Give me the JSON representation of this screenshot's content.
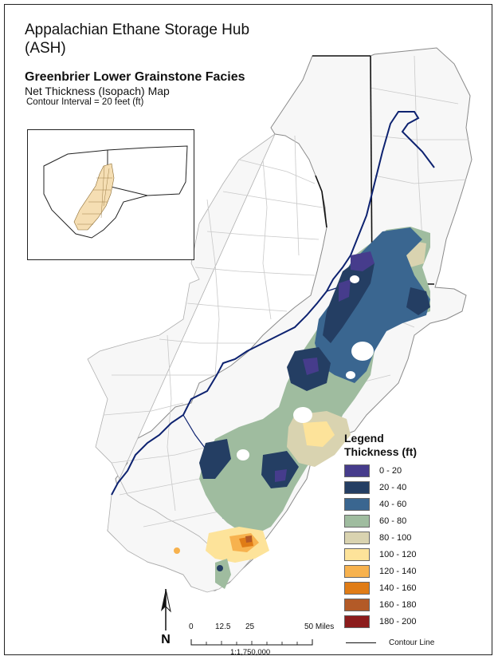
{
  "title": {
    "main": "Appalachian Ethane Storage Hub (ASH)",
    "unit": "Greenbrier Lower Grainstone Facies",
    "map_type": "Net Thickness (Isopach) Map",
    "contour_interval": "Contour Interval = 20 feet (ft)"
  },
  "legend": {
    "title": "Legend",
    "subtitle": "Thickness (ft)",
    "classes": [
      {
        "label": "0 - 20",
        "color": "#463c8c"
      },
      {
        "label": "20 - 40",
        "color": "#243e63"
      },
      {
        "label": "40 - 60",
        "color": "#3a6690"
      },
      {
        "label": "60 - 80",
        "color": "#9fbc9f"
      },
      {
        "label": "80 - 100",
        "color": "#d9d3b0"
      },
      {
        "label": "100 - 120",
        "color": "#fde39a"
      },
      {
        "label": "120 - 140",
        "color": "#f7b24e"
      },
      {
        "label": "140 - 160",
        "color": "#e07c16"
      },
      {
        "label": "160 - 180",
        "color": "#b35a27"
      },
      {
        "label": "180 - 200",
        "color": "#8c1c1c"
      }
    ],
    "contour_line": "Contour Line"
  },
  "scale": {
    "ticks": [
      "0",
      "12.5",
      "25",
      "50 Miles"
    ],
    "ratio": "1:1,750,000"
  },
  "north_label": "N",
  "colors": {
    "county_fill": "#f7f7f7",
    "county_line": "#c9c9c9",
    "state_line": "#222222",
    "river": "#0d2270",
    "inset_fill": "#f5deb3"
  }
}
